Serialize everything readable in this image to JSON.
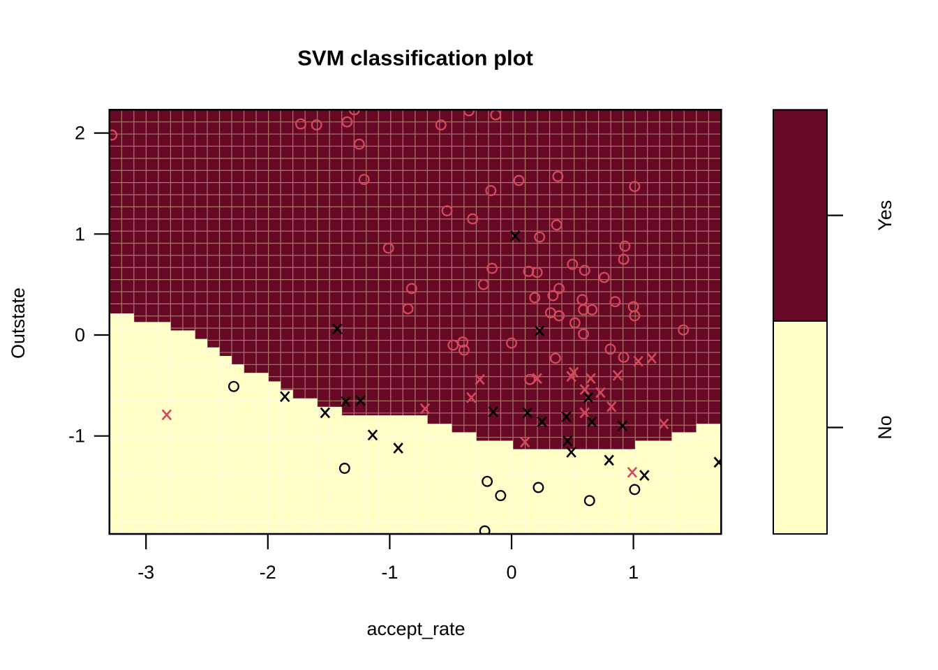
{
  "title": "SVM classification plot",
  "axes": {
    "x": {
      "label": "accept_rate",
      "ticks": [
        -3,
        -2,
        -1,
        0,
        1
      ],
      "tick_labels": [
        "-3",
        "-2",
        "-1",
        "0",
        "1"
      ],
      "range": [
        -3.3,
        1.72
      ]
    },
    "y": {
      "label": "Outstate",
      "ticks": [
        2,
        1,
        0,
        -1
      ],
      "tick_labels": [
        "2",
        "1",
        "0",
        "-1"
      ],
      "range": [
        -1.97,
        2.23
      ]
    }
  },
  "legend": {
    "items": [
      {
        "label": "Yes",
        "color": "#670824"
      },
      {
        "label": "No",
        "color": "#FFFFC6"
      }
    ]
  },
  "colors": {
    "region_yes": "#670824",
    "region_no": "#FFFFC6",
    "point_rose": "#D5495E",
    "point_black": "#000000",
    "grid_on_red": "#C59A86",
    "grid_on_yellow": "#FFFFFF",
    "axis": "#000000"
  },
  "chart_data": {
    "type": "scatter",
    "title": "SVM classification plot",
    "xlabel": "accept_rate",
    "ylabel": "Outstate",
    "xlim": [
      -3.3,
      1.72
    ],
    "ylim": [
      -1.97,
      2.23
    ],
    "x_ticks": [
      -3,
      -2,
      -1,
      0,
      1
    ],
    "y_ticks": [
      -1,
      0,
      1,
      2
    ],
    "grid": true,
    "legend_position": "right-colorbar",
    "regions": {
      "classes": [
        "Yes",
        "No"
      ],
      "colors": [
        "#670824",
        "#FFFFC6"
      ],
      "note": "Area above decision boundary classified Yes (dark red), below No (pale yellow); boundary rendered as pixel staircase"
    },
    "decision_boundary": [
      [
        -3.3,
        0.26
      ],
      [
        -3.05,
        0.15
      ],
      [
        -2.77,
        0.08
      ],
      [
        -2.48,
        -0.08
      ],
      [
        -2.31,
        -0.24
      ],
      [
        -2.11,
        -0.37
      ],
      [
        -1.84,
        -0.53
      ],
      [
        -1.58,
        -0.69
      ],
      [
        -1.33,
        -0.77
      ],
      [
        -0.82,
        -0.77
      ],
      [
        -0.53,
        -0.9
      ],
      [
        -0.32,
        -0.99
      ],
      [
        -0.03,
        -1.09
      ],
      [
        1.0,
        -1.11
      ],
      [
        1.19,
        -1.04
      ],
      [
        1.4,
        -0.97
      ],
      [
        1.55,
        -0.9
      ],
      [
        1.72,
        -0.85
      ]
    ],
    "series": [
      {
        "name": "Yes - data point (o)",
        "marker": "o",
        "color": "#D5495E",
        "points": [
          [
            -3.28,
            1.98
          ],
          [
            -1.73,
            2.09
          ],
          [
            -1.6,
            2.08
          ],
          [
            -1.35,
            2.11
          ],
          [
            -1.29,
            2.23
          ],
          [
            -1.25,
            1.89
          ],
          [
            -1.21,
            1.54
          ],
          [
            -1.01,
            0.86
          ],
          [
            -0.82,
            0.46
          ],
          [
            -0.85,
            0.26
          ],
          [
            -0.58,
            2.08
          ],
          [
            -0.35,
            2.22
          ],
          [
            -0.13,
            2.18
          ],
          [
            0.06,
            1.53
          ],
          [
            -0.17,
            1.43
          ],
          [
            0.38,
            1.57
          ],
          [
            1.01,
            1.47
          ],
          [
            -0.53,
            1.23
          ],
          [
            -0.32,
            1.15
          ],
          [
            0.37,
            1.09
          ],
          [
            0.23,
            0.97
          ],
          [
            0.93,
            0.88
          ],
          [
            0.92,
            0.75
          ],
          [
            0.5,
            0.7
          ],
          [
            0.6,
            0.64
          ],
          [
            -0.16,
            0.66
          ],
          [
            0.14,
            0.63
          ],
          [
            0.21,
            0.62
          ],
          [
            0.76,
            0.57
          ],
          [
            -0.23,
            0.5
          ],
          [
            0.19,
            0.37
          ],
          [
            0.34,
            0.39
          ],
          [
            0.39,
            0.46
          ],
          [
            0.32,
            0.22
          ],
          [
            0.39,
            0.19
          ],
          [
            0.58,
            0.35
          ],
          [
            0.59,
            0.25
          ],
          [
            0.66,
            0.25
          ],
          [
            0.52,
            0.12
          ],
          [
            0.59,
            0.01
          ],
          [
            0.85,
            0.33
          ],
          [
            1.0,
            0.28
          ],
          [
            1.01,
            0.19
          ],
          [
            1.41,
            0.05
          ],
          [
            -0.48,
            -0.1
          ],
          [
            -0.4,
            -0.07
          ],
          [
            -0.39,
            -0.15
          ],
          [
            0.0,
            -0.08
          ],
          [
            0.36,
            -0.23
          ],
          [
            0.81,
            -0.14
          ],
          [
            0.92,
            -0.22
          ],
          [
            0.15,
            -0.44
          ]
        ]
      },
      {
        "name": "No - data point (o)",
        "marker": "o",
        "color": "#000000",
        "points": [
          [
            -2.28,
            -0.51
          ],
          [
            -1.37,
            -1.32
          ],
          [
            -0.2,
            -1.45
          ],
          [
            -0.09,
            -1.59
          ],
          [
            0.22,
            -1.51
          ],
          [
            0.64,
            -1.64
          ],
          [
            1.01,
            -1.53
          ],
          [
            -0.22,
            -1.94
          ]
        ]
      },
      {
        "name": "Yes - support vector (x)",
        "marker": "x",
        "color": "#D5495E",
        "points": [
          [
            -2.83,
            -0.79
          ],
          [
            -0.71,
            -0.73
          ],
          [
            -0.33,
            -0.62
          ],
          [
            -0.26,
            -0.44
          ],
          [
            0.21,
            -0.43
          ],
          [
            0.49,
            -0.41
          ],
          [
            0.51,
            -0.37
          ],
          [
            0.65,
            -0.43
          ],
          [
            0.6,
            -0.54
          ],
          [
            0.73,
            -0.57
          ],
          [
            0.87,
            -0.4
          ],
          [
            0.82,
            -0.71
          ],
          [
            0.6,
            -0.77
          ],
          [
            1.04,
            -0.26
          ],
          [
            1.15,
            -0.23
          ],
          [
            1.25,
            -0.88
          ],
          [
            0.11,
            -1.06
          ],
          [
            0.99,
            -1.36
          ]
        ]
      },
      {
        "name": "No - support vector (x)",
        "marker": "x",
        "color": "#000000",
        "points": [
          [
            -1.43,
            0.06
          ],
          [
            0.03,
            0.98
          ],
          [
            0.23,
            0.04
          ],
          [
            -1.86,
            -0.61
          ],
          [
            -1.53,
            -0.77
          ],
          [
            -1.36,
            -0.66
          ],
          [
            -1.24,
            -0.65
          ],
          [
            -1.14,
            -0.99
          ],
          [
            -0.93,
            -1.12
          ],
          [
            -0.15,
            -0.76
          ],
          [
            0.13,
            -0.77
          ],
          [
            0.25,
            -0.86
          ],
          [
            0.45,
            -0.81
          ],
          [
            0.63,
            -0.62
          ],
          [
            0.66,
            -0.86
          ],
          [
            0.91,
            -0.9
          ],
          [
            0.46,
            -1.05
          ],
          [
            0.49,
            -1.16
          ],
          [
            0.8,
            -1.24
          ],
          [
            1.09,
            -1.39
          ],
          [
            1.7,
            -1.26
          ]
        ]
      }
    ]
  }
}
